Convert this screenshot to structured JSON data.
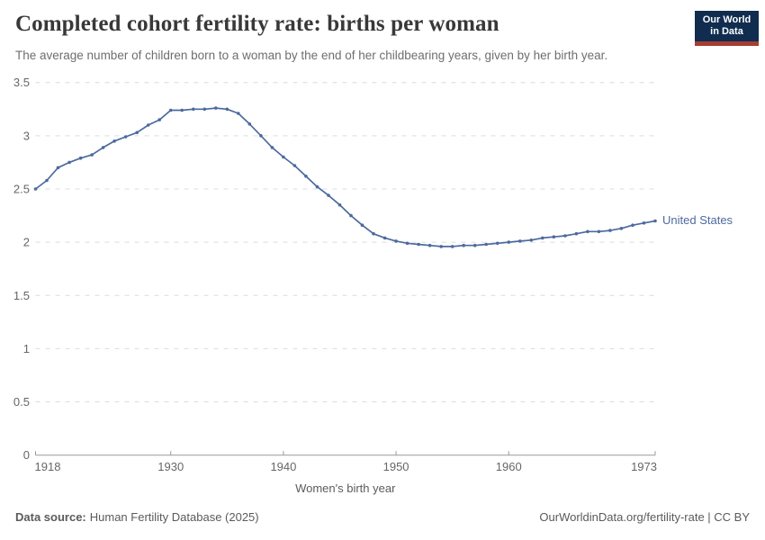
{
  "logo": {
    "line1": "Our World",
    "line2": "in Data"
  },
  "colors": {
    "line_blue": "#4c6a9e",
    "logo_navy": "#102d4f",
    "logo_red": "#a63d33",
    "grid_gray": "#dcdcdc",
    "axis_gray": "#9a9a9a",
    "tick_label_gray": "#666666"
  },
  "chart_data": {
    "type": "line",
    "title": "Completed cohort fertility rate: births per woman",
    "subtitle": "The average number of children born to a woman by the end of her childbearing years, given by her birth year.",
    "xlabel": "Women's birth year",
    "ylabel": "",
    "x_range": [
      1918,
      1973
    ],
    "ylim": [
      0,
      3.5
    ],
    "yticks": [
      0,
      0.5,
      1,
      1.5,
      2,
      2.5,
      3,
      3.5
    ],
    "xticks": [
      1918,
      1930,
      1940,
      1950,
      1960,
      1973
    ],
    "grid": "horizontal dashed",
    "legend_position": "end-of-line label",
    "series": [
      {
        "name": "United States",
        "color": "#4c6a9e",
        "x": [
          1918,
          1919,
          1920,
          1921,
          1922,
          1923,
          1924,
          1925,
          1926,
          1927,
          1928,
          1929,
          1930,
          1931,
          1932,
          1933,
          1934,
          1935,
          1936,
          1937,
          1938,
          1939,
          1940,
          1941,
          1942,
          1943,
          1944,
          1945,
          1946,
          1947,
          1948,
          1949,
          1950,
          1951,
          1952,
          1953,
          1954,
          1955,
          1956,
          1957,
          1958,
          1959,
          1960,
          1961,
          1962,
          1963,
          1964,
          1965,
          1966,
          1967,
          1968,
          1969,
          1970,
          1971,
          1972,
          1973
        ],
        "values": [
          2.5,
          2.58,
          2.7,
          2.75,
          2.79,
          2.82,
          2.89,
          2.95,
          2.99,
          3.03,
          3.1,
          3.15,
          3.24,
          3.24,
          3.25,
          3.25,
          3.26,
          3.25,
          3.21,
          3.11,
          3.0,
          2.89,
          2.8,
          2.72,
          2.62,
          2.52,
          2.44,
          2.35,
          2.25,
          2.16,
          2.08,
          2.04,
          2.01,
          1.99,
          1.98,
          1.97,
          1.96,
          1.96,
          1.97,
          1.97,
          1.98,
          1.99,
          2.0,
          2.01,
          2.02,
          2.04,
          2.05,
          2.06,
          2.08,
          2.1,
          2.1,
          2.11,
          2.13,
          2.16,
          2.18,
          2.2
        ]
      }
    ]
  },
  "footer": {
    "source_label": "Data source:",
    "source_text": "Human Fertility Database (2025)",
    "attribution": "OurWorldinData.org/fertility-rate | CC BY"
  }
}
